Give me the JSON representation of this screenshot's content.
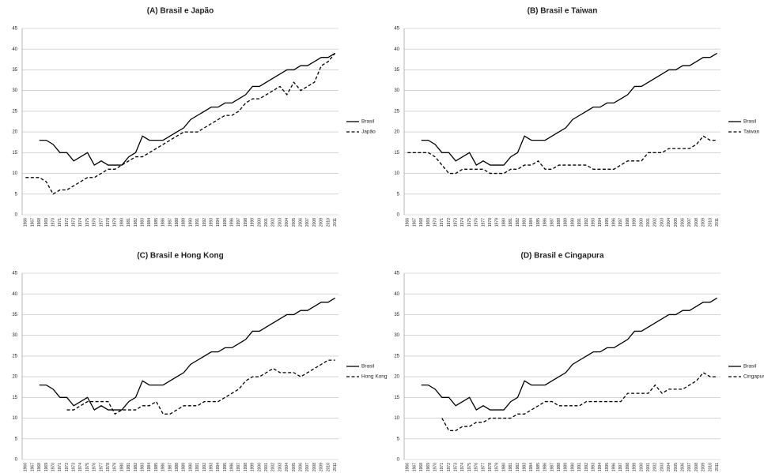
{
  "chart_data": [
    {
      "type": "line",
      "title": "(A) Brasil e Japão",
      "categories": [
        "1966",
        "1967",
        "1968",
        "1969",
        "1970",
        "1971",
        "1972",
        "1973",
        "1974",
        "1975",
        "1976",
        "1977",
        "1978",
        "1979",
        "1980",
        "1981",
        "1982",
        "1983",
        "1984",
        "1985",
        "1986",
        "1987",
        "1988",
        "1989",
        "1990",
        "1991",
        "1992",
        "1993",
        "1994",
        "1995",
        "1996",
        "1997",
        "1998",
        "1999",
        "2000",
        "2001",
        "2002",
        "2003",
        "2004",
        "2005",
        "2006",
        "2007",
        "2008",
        "2009",
        "2010",
        "2011"
      ],
      "series": [
        {
          "name": "Brasil",
          "color": "#000000",
          "line_style": "solid",
          "values": [
            null,
            null,
            18,
            18,
            17,
            15,
            15,
            13,
            14,
            15,
            12,
            13,
            12,
            12,
            12,
            14,
            15,
            19,
            18,
            18,
            18,
            19,
            20,
            21,
            23,
            24,
            25,
            26,
            26,
            27,
            27,
            28,
            29,
            31,
            31,
            32,
            33,
            34,
            35,
            35,
            36,
            36,
            37,
            38,
            38,
            39
          ]
        },
        {
          "name": "Japão",
          "color": "#000000",
          "line_style": "dashed",
          "values": [
            9,
            9,
            9,
            8,
            5,
            6,
            6,
            7,
            8,
            9,
            9,
            10,
            11,
            11,
            12,
            13,
            14,
            14,
            15,
            16,
            17,
            18,
            19,
            20,
            20,
            20,
            21,
            22,
            23,
            24,
            24,
            25,
            27,
            28,
            28,
            29,
            30,
            31,
            29,
            32,
            30,
            31,
            32,
            36,
            37,
            39
          ]
        }
      ],
      "ylim": [
        0,
        45
      ],
      "yticks": [
        0,
        5,
        10,
        15,
        20,
        25,
        30,
        35,
        40,
        45
      ],
      "grid": true,
      "legend": "right"
    },
    {
      "type": "line",
      "title": "(B) Brasil e Taiwan",
      "categories": [
        "1966",
        "1967",
        "1968",
        "1969",
        "1970",
        "1971",
        "1972",
        "1973",
        "1974",
        "1975",
        "1976",
        "1977",
        "1978",
        "1979",
        "1980",
        "1981",
        "1982",
        "1983",
        "1984",
        "1985",
        "1986",
        "1987",
        "1988",
        "1989",
        "1990",
        "1991",
        "1992",
        "1993",
        "1994",
        "1995",
        "1996",
        "1997",
        "1998",
        "1999",
        "2000",
        "2001",
        "2002",
        "2003",
        "2004",
        "2005",
        "2006",
        "2007",
        "2008",
        "2009",
        "2010",
        "2011"
      ],
      "series": [
        {
          "name": "Brasil",
          "color": "#000000",
          "line_style": "solid",
          "values": [
            null,
            null,
            18,
            18,
            17,
            15,
            15,
            13,
            14,
            15,
            12,
            13,
            12,
            12,
            12,
            14,
            15,
            19,
            18,
            18,
            18,
            19,
            20,
            21,
            23,
            24,
            25,
            26,
            26,
            27,
            27,
            28,
            29,
            31,
            31,
            32,
            33,
            34,
            35,
            35,
            36,
            36,
            37,
            38,
            38,
            39
          ]
        },
        {
          "name": "Taiwan",
          "color": "#000000",
          "line_style": "dashed",
          "values": [
            15,
            15,
            15,
            15,
            14,
            12,
            10,
            10,
            11,
            11,
            11,
            11,
            10,
            10,
            10,
            11,
            11,
            12,
            12,
            13,
            11,
            11,
            12,
            12,
            12,
            12,
            12,
            11,
            11,
            11,
            11,
            12,
            13,
            13,
            13,
            15,
            15,
            15,
            16,
            16,
            16,
            16,
            17,
            19,
            18,
            18
          ]
        }
      ],
      "ylim": [
        0,
        45
      ],
      "yticks": [
        0,
        5,
        10,
        15,
        20,
        25,
        30,
        35,
        40,
        45
      ],
      "grid": true,
      "legend": "right"
    },
    {
      "type": "line",
      "title": "(C) Brasil e Hong Kong",
      "categories": [
        "1966",
        "1967",
        "1968",
        "1969",
        "1970",
        "1971",
        "1972",
        "1973",
        "1974",
        "1975",
        "1976",
        "1977",
        "1978",
        "1979",
        "1980",
        "1981",
        "1982",
        "1983",
        "1984",
        "1985",
        "1986",
        "1987",
        "1988",
        "1989",
        "1990",
        "1991",
        "1992",
        "1993",
        "1994",
        "1995",
        "1996",
        "1997",
        "1998",
        "1999",
        "2000",
        "2001",
        "2002",
        "2003",
        "2004",
        "2005",
        "2006",
        "2007",
        "2008",
        "2009",
        "2010",
        "2011"
      ],
      "series": [
        {
          "name": "Brasil",
          "color": "#000000",
          "line_style": "solid",
          "values": [
            null,
            null,
            18,
            18,
            17,
            15,
            15,
            13,
            14,
            15,
            12,
            13,
            12,
            12,
            12,
            14,
            15,
            19,
            18,
            18,
            18,
            19,
            20,
            21,
            23,
            24,
            25,
            26,
            26,
            27,
            27,
            28,
            29,
            31,
            31,
            32,
            33,
            34,
            35,
            35,
            36,
            36,
            37,
            38,
            38,
            39
          ]
        },
        {
          "name": "Hong Kong",
          "color": "#000000",
          "line_style": "dashed",
          "values": [
            null,
            null,
            null,
            null,
            null,
            null,
            12,
            12,
            13,
            14,
            14,
            14,
            14,
            11,
            12,
            12,
            12,
            13,
            13,
            14,
            11,
            11,
            12,
            13,
            13,
            13,
            14,
            14,
            14,
            15,
            16,
            17,
            19,
            20,
            20,
            21,
            22,
            21,
            21,
            21,
            20,
            21,
            22,
            23,
            24,
            24
          ]
        }
      ],
      "ylim": [
        0,
        45
      ],
      "yticks": [
        0,
        5,
        10,
        15,
        20,
        25,
        30,
        35,
        40,
        45
      ],
      "grid": true,
      "legend": "right"
    },
    {
      "type": "line",
      "title": "(D) Brasil e Cingapura",
      "categories": [
        "1966",
        "1967",
        "1968",
        "1969",
        "1970",
        "1971",
        "1972",
        "1973",
        "1974",
        "1975",
        "1976",
        "1977",
        "1978",
        "1979",
        "1980",
        "1981",
        "1982",
        "1983",
        "1984",
        "1985",
        "1986",
        "1987",
        "1988",
        "1989",
        "1990",
        "1991",
        "1992",
        "1993",
        "1994",
        "1995",
        "1996",
        "1997",
        "1998",
        "1999",
        "2000",
        "2001",
        "2002",
        "2003",
        "2004",
        "2005",
        "2006",
        "2007",
        "2008",
        "2009",
        "2010",
        "2011"
      ],
      "series": [
        {
          "name": "Brasil",
          "color": "#000000",
          "line_style": "solid",
          "values": [
            null,
            null,
            18,
            18,
            17,
            15,
            15,
            13,
            14,
            15,
            12,
            13,
            12,
            12,
            12,
            14,
            15,
            19,
            18,
            18,
            18,
            19,
            20,
            21,
            23,
            24,
            25,
            26,
            26,
            27,
            27,
            28,
            29,
            31,
            31,
            32,
            33,
            34,
            35,
            35,
            36,
            36,
            37,
            38,
            38,
            39
          ]
        },
        {
          "name": "Cingapura",
          "color": "#000000",
          "line_style": "dashed",
          "values": [
            null,
            null,
            null,
            null,
            null,
            10,
            7,
            7,
            8,
            8,
            9,
            9,
            10,
            10,
            10,
            10,
            11,
            11,
            12,
            13,
            14,
            14,
            13,
            13,
            13,
            13,
            14,
            14,
            14,
            14,
            14,
            14,
            16,
            16,
            16,
            16,
            18,
            16,
            17,
            17,
            17,
            18,
            19,
            21,
            20,
            20
          ]
        }
      ],
      "ylim": [
        0,
        45
      ],
      "yticks": [
        0,
        5,
        10,
        15,
        20,
        25,
        30,
        35,
        40,
        45
      ],
      "grid": true,
      "legend": "right"
    }
  ]
}
